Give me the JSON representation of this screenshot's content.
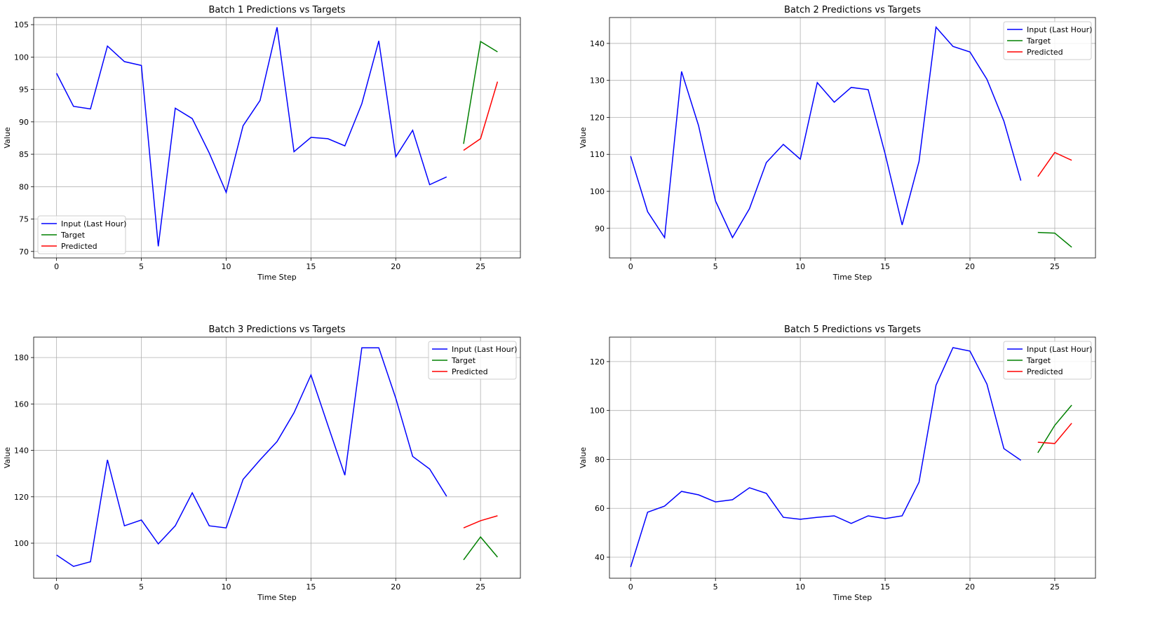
{
  "colors": {
    "input": "#0000ff",
    "target": "#008000",
    "predicted": "#ff0000",
    "grid": "#b0b0b0"
  },
  "chart_data": [
    {
      "type": "line",
      "title": "Batch 1 Predictions vs Targets",
      "xlabel": "Time Step",
      "ylabel": "Value",
      "xlim": [
        -1.35,
        27.35
      ],
      "ylim": [
        69.0,
        106.1
      ],
      "xticks": [
        0,
        5,
        10,
        15,
        20,
        25
      ],
      "yticks": [
        70,
        75,
        80,
        85,
        90,
        95,
        100,
        105
      ],
      "grid": true,
      "legend": "lower-left",
      "series": [
        {
          "name": "Input (Last Hour)",
          "color": "#0000ff",
          "x": [
            0,
            1,
            2,
            3,
            4,
            5,
            6,
            7,
            8,
            9,
            10,
            11,
            12,
            13,
            14,
            15,
            16,
            17,
            18,
            19,
            20,
            21,
            22,
            23
          ],
          "values": [
            97.5,
            92.4,
            92.0,
            101.7,
            99.3,
            98.7,
            70.8,
            92.1,
            90.5,
            85.2,
            79.1,
            89.4,
            93.3,
            104.6,
            85.4,
            87.6,
            87.4,
            86.3,
            92.8,
            102.5,
            84.6,
            88.7,
            80.3,
            81.5
          ]
        },
        {
          "name": "Target",
          "color": "#008000",
          "x": [
            24,
            25,
            26
          ],
          "values": [
            86.6,
            102.4,
            100.8
          ]
        },
        {
          "name": "Predicted",
          "color": "#ff0000",
          "x": [
            24,
            25,
            26
          ],
          "values": [
            85.6,
            87.4,
            96.2
          ]
        }
      ]
    },
    {
      "type": "line",
      "title": "Batch 2 Predictions vs Targets",
      "xlabel": "Time Step",
      "ylabel": "Value",
      "xlim": [
        -1.25,
        27.4
      ],
      "ylim": [
        82.0,
        147.0
      ],
      "xticks": [
        0,
        5,
        10,
        15,
        20,
        25
      ],
      "yticks": [
        90,
        100,
        110,
        120,
        130,
        140
      ],
      "grid": true,
      "legend": "upper-right",
      "series": [
        {
          "name": "Input (Last Hour)",
          "color": "#0000ff",
          "x": [
            0,
            1,
            2,
            3,
            4,
            5,
            6,
            7,
            8,
            9,
            10,
            11,
            12,
            13,
            14,
            15,
            16,
            17,
            18,
            19,
            20,
            21,
            22,
            23
          ],
          "values": [
            109.5,
            94.5,
            87.5,
            132.4,
            117.8,
            97.4,
            87.5,
            95.3,
            107.8,
            112.7,
            108.7,
            129.4,
            124.1,
            128.1,
            127.5,
            110.1,
            90.9,
            108.1,
            144.4,
            139.2,
            137.7,
            130.3,
            119.0,
            102.9
          ]
        },
        {
          "name": "Target",
          "color": "#008000",
          "x": [
            24,
            25,
            26
          ],
          "values": [
            88.9,
            88.7,
            84.9
          ]
        },
        {
          "name": "Predicted",
          "color": "#ff0000",
          "x": [
            24,
            25,
            26
          ],
          "values": [
            104.0,
            110.5,
            108.4
          ]
        }
      ]
    },
    {
      "type": "line",
      "title": "Batch 3 Predictions vs Targets",
      "xlabel": "Time Step",
      "ylabel": "Value",
      "xlim": [
        -1.35,
        27.35
      ],
      "ylim": [
        84.9,
        188.8
      ],
      "xticks": [
        0,
        5,
        10,
        15,
        20,
        25
      ],
      "yticks": [
        100,
        120,
        140,
        160,
        180
      ],
      "grid": true,
      "legend": "upper-right",
      "series": [
        {
          "name": "Input (Last Hour)",
          "color": "#0000ff",
          "x": [
            0,
            1,
            2,
            3,
            4,
            5,
            6,
            7,
            8,
            9,
            10,
            11,
            12,
            13,
            14,
            15,
            16,
            17,
            18,
            19,
            20,
            21,
            22,
            23
          ],
          "values": [
            94.9,
            90.0,
            92.0,
            135.9,
            107.5,
            110.0,
            99.7,
            107.5,
            121.7,
            107.5,
            106.6,
            127.5,
            135.9,
            143.8,
            156.2,
            172.5,
            150.8,
            129.3,
            184.2,
            184.2,
            162.5,
            137.4,
            132.0,
            120.2
          ]
        },
        {
          "name": "Target",
          "color": "#008000",
          "x": [
            24,
            25,
            26
          ],
          "values": [
            92.8,
            102.7,
            94.0
          ]
        },
        {
          "name": "Predicted",
          "color": "#ff0000",
          "x": [
            24,
            25,
            26
          ],
          "values": [
            106.6,
            109.7,
            111.8
          ]
        }
      ]
    },
    {
      "type": "line",
      "title": "Batch 5 Predictions vs Targets",
      "xlabel": "Time Step",
      "ylabel": "Value",
      "xlim": [
        -1.25,
        27.4
      ],
      "ylim": [
        31.4,
        130.0
      ],
      "xticks": [
        0,
        5,
        10,
        15,
        20,
        25
      ],
      "yticks": [
        40,
        60,
        80,
        100,
        120
      ],
      "grid": true,
      "legend": "upper-right",
      "series": [
        {
          "name": "Input (Last Hour)",
          "color": "#0000ff",
          "x": [
            0,
            1,
            2,
            3,
            4,
            5,
            6,
            7,
            8,
            9,
            10,
            11,
            12,
            13,
            14,
            15,
            16,
            17,
            18,
            19,
            20,
            21,
            22,
            23
          ],
          "values": [
            36.0,
            58.4,
            60.9,
            66.9,
            65.5,
            62.6,
            63.5,
            68.4,
            66.1,
            56.3,
            55.5,
            56.3,
            56.9,
            53.8,
            56.9,
            55.8,
            56.9,
            70.7,
            110.3,
            125.7,
            124.3,
            110.8,
            84.4,
            79.6
          ]
        },
        {
          "name": "Target",
          "color": "#008000",
          "x": [
            24,
            25,
            26
          ],
          "values": [
            82.7,
            93.9,
            102.2
          ]
        },
        {
          "name": "Predicted",
          "color": "#ff0000",
          "x": [
            24,
            25,
            26
          ],
          "values": [
            87.0,
            86.5,
            94.8
          ]
        }
      ]
    }
  ]
}
